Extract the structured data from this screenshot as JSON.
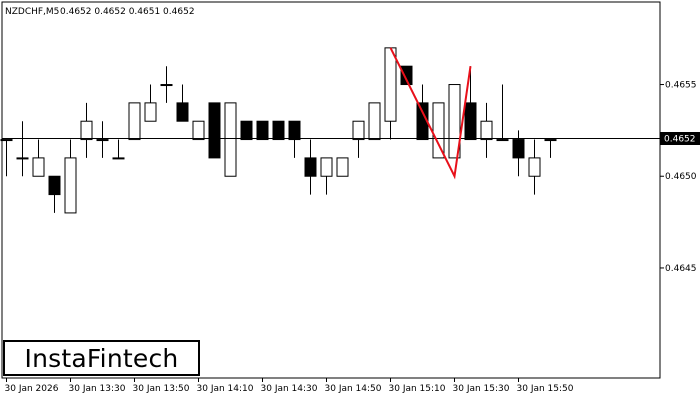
{
  "header": {
    "symbol_timeframe": "NZDCHF,M5",
    "ohlc": "0.4652 0.4652 0.4651 0.4652"
  },
  "current_price_label": "0.4652",
  "brand": {
    "name": "InstaFintech"
  },
  "colors": {
    "bull_body": "#ffffff",
    "bear_body": "#000000",
    "pattern_line": "#e8101a",
    "price_line": "#000000",
    "frame": "#000000"
  },
  "chart_data": {
    "type": "candlestick",
    "ylim": [
      0.4639,
      0.46595
    ],
    "y_ticks": [
      "0.4655",
      "0.4650",
      "0.4645"
    ],
    "x_ticks": [
      {
        "index": 0,
        "label": "30 Jan 2026"
      },
      {
        "index": 4,
        "label": "30 Jan 13:30"
      },
      {
        "index": 8,
        "label": "30 Jan 13:50"
      },
      {
        "index": 12,
        "label": "30 Jan 14:10"
      },
      {
        "index": 16,
        "label": "30 Jan 14:30"
      },
      {
        "index": 20,
        "label": "30 Jan 14:50"
      },
      {
        "index": 24,
        "label": "30 Jan 15:10"
      },
      {
        "index": 28,
        "label": "30 Jan 15:30"
      },
      {
        "index": 32,
        "label": "30 Jan 15:50"
      }
    ],
    "current_price": 0.46521,
    "candles": [
      {
        "o": 0.4652,
        "h": 0.4652,
        "l": 0.465,
        "c": 0.4652
      },
      {
        "o": 0.4651,
        "h": 0.4653,
        "l": 0.465,
        "c": 0.4651
      },
      {
        "o": 0.465,
        "h": 0.4652,
        "l": 0.465,
        "c": 0.4651
      },
      {
        "o": 0.465,
        "h": 0.465,
        "l": 0.4648,
        "c": 0.4649
      },
      {
        "o": 0.4648,
        "h": 0.4652,
        "l": 0.4648,
        "c": 0.4651
      },
      {
        "o": 0.4652,
        "h": 0.4654,
        "l": 0.4651,
        "c": 0.4653
      },
      {
        "o": 0.4652,
        "h": 0.4653,
        "l": 0.4651,
        "c": 0.4652
      },
      {
        "o": 0.4651,
        "h": 0.4652,
        "l": 0.4651,
        "c": 0.4651
      },
      {
        "o": 0.4652,
        "h": 0.4654,
        "l": 0.4652,
        "c": 0.4654
      },
      {
        "o": 0.4653,
        "h": 0.4655,
        "l": 0.4653,
        "c": 0.4654
      },
      {
        "o": 0.4655,
        "h": 0.4656,
        "l": 0.4654,
        "c": 0.4655
      },
      {
        "o": 0.4654,
        "h": 0.4655,
        "l": 0.4653,
        "c": 0.4653
      },
      {
        "o": 0.4652,
        "h": 0.4653,
        "l": 0.4652,
        "c": 0.4653
      },
      {
        "o": 0.4654,
        "h": 0.4654,
        "l": 0.4651,
        "c": 0.4651
      },
      {
        "o": 0.465,
        "h": 0.4654,
        "l": 0.465,
        "c": 0.4654
      },
      {
        "o": 0.4653,
        "h": 0.4653,
        "l": 0.4652,
        "c": 0.4652
      },
      {
        "o": 0.4653,
        "h": 0.4653,
        "l": 0.4652,
        "c": 0.4652
      },
      {
        "o": 0.4653,
        "h": 0.4653,
        "l": 0.4652,
        "c": 0.4652
      },
      {
        "o": 0.4653,
        "h": 0.4653,
        "l": 0.4651,
        "c": 0.4652
      },
      {
        "o": 0.4651,
        "h": 0.4652,
        "l": 0.4649,
        "c": 0.465
      },
      {
        "o": 0.465,
        "h": 0.4651,
        "l": 0.4649,
        "c": 0.4651
      },
      {
        "o": 0.465,
        "h": 0.4651,
        "l": 0.465,
        "c": 0.4651
      },
      {
        "o": 0.4652,
        "h": 0.4653,
        "l": 0.4651,
        "c": 0.4653
      },
      {
        "o": 0.4652,
        "h": 0.4654,
        "l": 0.4652,
        "c": 0.4654
      },
      {
        "o": 0.4653,
        "h": 0.4657,
        "l": 0.4652,
        "c": 0.4657
      },
      {
        "o": 0.4656,
        "h": 0.4656,
        "l": 0.4655,
        "c": 0.4655
      },
      {
        "o": 0.4654,
        "h": 0.4655,
        "l": 0.4652,
        "c": 0.4652
      },
      {
        "o": 0.4651,
        "h": 0.4654,
        "l": 0.4651,
        "c": 0.4654
      },
      {
        "o": 0.4651,
        "h": 0.4655,
        "l": 0.4651,
        "c": 0.4655
      },
      {
        "o": 0.4654,
        "h": 0.4656,
        "l": 0.4652,
        "c": 0.4652
      },
      {
        "o": 0.4652,
        "h": 0.4654,
        "l": 0.4651,
        "c": 0.4653
      },
      {
        "o": 0.4652,
        "h": 0.4655,
        "l": 0.4652,
        "c": 0.4652
      },
      {
        "o": 0.4652,
        "h": 0.46525,
        "l": 0.465,
        "c": 0.4651
      },
      {
        "o": 0.465,
        "h": 0.4652,
        "l": 0.4649,
        "c": 0.4651
      },
      {
        "o": 0.4652,
        "h": 0.4652,
        "l": 0.4651,
        "c": 0.4652
      }
    ],
    "pattern_line": [
      {
        "index": 24,
        "price": 0.4657
      },
      {
        "index": 28,
        "price": 0.465
      },
      {
        "index": 29,
        "price": 0.4656
      }
    ]
  }
}
